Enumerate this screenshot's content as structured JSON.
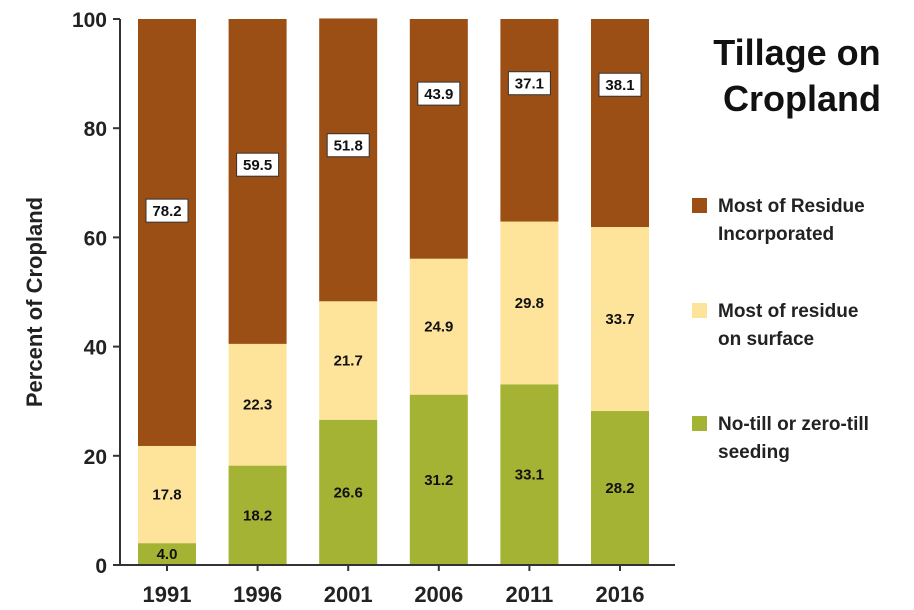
{
  "chart_data": {
    "type": "bar",
    "stacked": true,
    "title_lines": [
      "Tillage on",
      "Cropland"
    ],
    "ylabel": "Percent of Cropland",
    "xlabel": "",
    "ylim": [
      0,
      100
    ],
    "yticks": [
      0,
      20,
      40,
      60,
      80,
      100
    ],
    "grid": false,
    "legend_position": "right",
    "categories": [
      "1991",
      "1996",
      "2001",
      "2006",
      "2011",
      "2016"
    ],
    "series": [
      {
        "name_lines": [
          "No-till or zero-till",
          "seeding"
        ],
        "color": "#a4b334",
        "values": [
          4.0,
          18.2,
          26.6,
          31.2,
          33.1,
          28.2
        ],
        "labels": [
          "4.0",
          "18.2",
          "26.6",
          "31.2",
          "33.1",
          "28.2"
        ],
        "label_style": "plain"
      },
      {
        "name_lines": [
          "Most of residue",
          "on surface"
        ],
        "color": "#fde49a",
        "values": [
          17.8,
          22.3,
          21.7,
          24.9,
          29.8,
          33.7
        ],
        "labels": [
          "17.8",
          "22.3",
          "21.7",
          "24.9",
          "29.8",
          "33.7"
        ],
        "label_style": "plain"
      },
      {
        "name_lines": [
          "Most of Residue",
          "Incorporated"
        ],
        "color": "#9b4f14",
        "values": [
          78.2,
          59.5,
          51.8,
          43.9,
          37.1,
          38.1
        ],
        "labels": [
          "78.2",
          "59.5",
          "51.8",
          "43.9",
          "37.1",
          "38.1"
        ],
        "label_style": "boxed"
      }
    ]
  }
}
